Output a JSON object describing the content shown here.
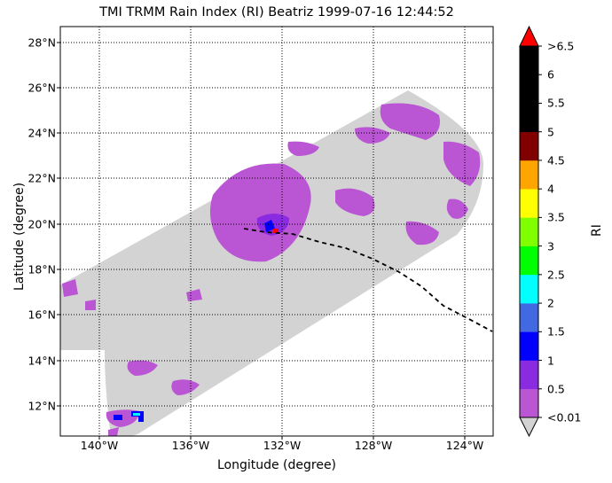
{
  "title": "TMI TRMM Rain Index (RI) Beatriz 1999-07-16 12:44:52",
  "axes": {
    "xlabel": "Longitude (degree)",
    "ylabel": "Latitude (degree)",
    "x_ticks": [
      "140°W",
      "136°W",
      "132°W",
      "128°W",
      "124°W"
    ],
    "y_ticks": [
      "28°N",
      "26°N",
      "24°N",
      "22°N",
      "20°N",
      "18°N",
      "16°N",
      "14°N",
      "12°N"
    ]
  },
  "colorbar": {
    "label": "RI",
    "ticks": [
      ">6.5",
      "6",
      "5.5",
      "5",
      "4.5",
      "4",
      "3.5",
      "3",
      "2.5",
      "2",
      "1.5",
      "1",
      "0.5",
      "<0.01"
    ],
    "colors": [
      "#BA55D3",
      "#8A2BE2",
      "#0000FF",
      "#4169E1",
      "#00FFFF",
      "#00FF00",
      "#7FFF00",
      "#FFFF00",
      "#FFA500",
      "#800000",
      "#000000",
      "#000000",
      "#000000"
    ],
    "over_color": "#FF0000",
    "under_color": "#D3D3D3"
  },
  "map": {
    "swath_color": "#D3D3D3",
    "rain_color": "#BA55D3",
    "track_style": "dashed black"
  }
}
